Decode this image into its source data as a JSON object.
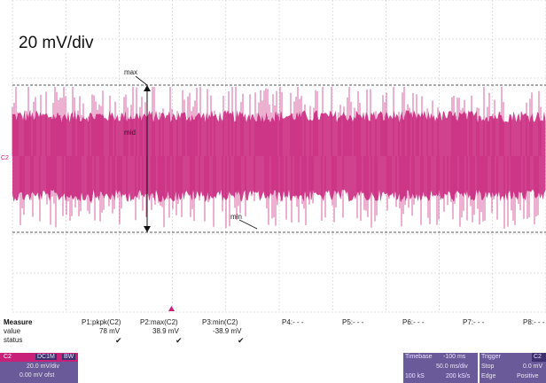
{
  "screen": {
    "volts_per_div": "20 mV/div",
    "cursor_labels": {
      "max": "max",
      "mid": "mid",
      "min": "min"
    },
    "channel_marker": "C2"
  },
  "colors": {
    "trace": "#c8217a",
    "grid": "#c8c8c8",
    "panel": "#6b5a9a",
    "panel_header": "#3f3070"
  },
  "measure": {
    "header_label": "Measure",
    "row_labels": [
      "value",
      "status"
    ],
    "params": [
      {
        "name": "P1:pkpk(C2)",
        "value": "78 mV",
        "status": "✔"
      },
      {
        "name": "P2:max(C2)",
        "value": "38.9 mV",
        "status": "✔"
      },
      {
        "name": "P3:min(C2)",
        "value": "-38.9 mV",
        "status": "✔"
      },
      {
        "name": "P4:- - -",
        "value": "",
        "status": ""
      },
      {
        "name": "P5:- - -",
        "value": "",
        "status": ""
      },
      {
        "name": "P6:- - -",
        "value": "",
        "status": ""
      },
      {
        "name": "P7:- - -",
        "value": "",
        "status": ""
      },
      {
        "name": "P8:- - -",
        "value": "",
        "status": ""
      }
    ]
  },
  "channel_box": {
    "name": "C2",
    "coupling": "DC1M",
    "bandwidth": "BW",
    "scale": "20.0 mV/div",
    "offset": "0.00 mV ofst"
  },
  "timebase_box": {
    "title": "Timebase",
    "delay": "-100 ms",
    "per_div": "50.0 ms/div",
    "samples": "100 kS",
    "rate": "200 kS/s"
  },
  "trigger_box": {
    "title": "Trigger",
    "tag": "C2",
    "mode": "Stop",
    "level": "0.0 mV",
    "type": "Edge",
    "slope": "Positive"
  }
}
